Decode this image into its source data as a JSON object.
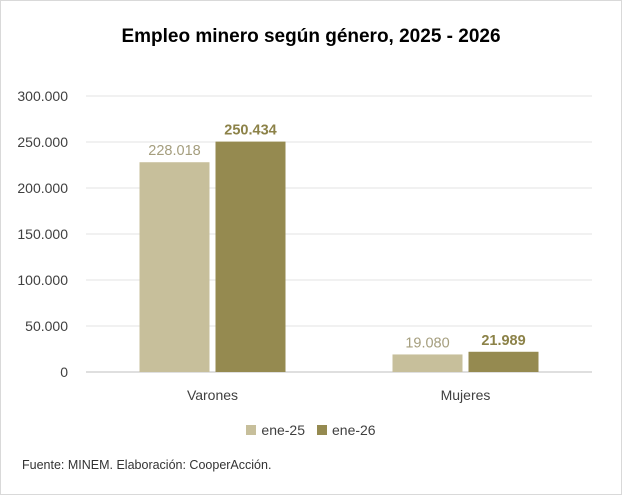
{
  "chart_data": {
    "type": "bar",
    "title": "Empleo minero según género, 2025 - 2026",
    "categories": [
      "Varones",
      "Mujeres"
    ],
    "series": [
      {
        "name": "ene-25",
        "values": [
          228018,
          19080
        ],
        "labels": [
          "228.018",
          "19.080"
        ],
        "color": "#c7bf9b",
        "label_color": "#a59e7e"
      },
      {
        "name": "ene-26",
        "values": [
          250434,
          21989
        ],
        "labels": [
          "250.434",
          "21.989"
        ],
        "color": "#958a50",
        "label_color": "#8c8248"
      }
    ],
    "ylim": [
      0,
      300000
    ],
    "yticks": [
      {
        "value": 0,
        "label": "0"
      },
      {
        "value": 50000,
        "label": "50.000"
      },
      {
        "value": 100000,
        "label": "100.000"
      },
      {
        "value": 150000,
        "label": "150.000"
      },
      {
        "value": 200000,
        "label": "200.000"
      },
      {
        "value": 250000,
        "label": "250.000"
      },
      {
        "value": 300000,
        "label": "300.000"
      }
    ],
    "grid": true,
    "legend_position": "bottom"
  },
  "source": "Fuente: MINEM. Elaboración: CooperAcción."
}
